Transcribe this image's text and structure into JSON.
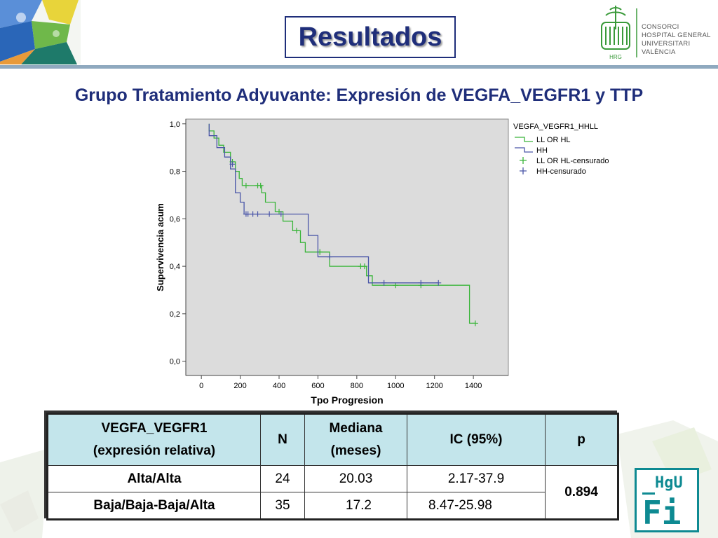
{
  "header": {
    "title": "Resultados",
    "logo_lines": [
      "CONSORCI",
      "HOSPITAL GENERAL",
      "UNIVERSITARI",
      "VALÈNCIA"
    ],
    "logo_mark_text": "HRG"
  },
  "subtitle": "Grupo Tratamiento Adyuvante: Expresión de VEGFA_VEGFR1 y TTP",
  "chart_data": {
    "type": "line",
    "subtype": "kaplan-meier step survival curve",
    "title": "",
    "xlabel": "Tpo Progresion",
    "ylabel": "Supervivencia acum",
    "xlim": [
      -80,
      1580
    ],
    "ylim": [
      -0.06,
      1.02
    ],
    "x_ticks": [
      0,
      200,
      400,
      600,
      800,
      1000,
      1200,
      1400
    ],
    "y_ticks": [
      0.0,
      0.2,
      0.4,
      0.6,
      0.8,
      1.0
    ],
    "y_tick_labels": [
      "0,0",
      "0,2",
      "0,4",
      "0,6",
      "0,8",
      "1,0"
    ],
    "grid": false,
    "legend_title": "VEGFA_VEGFR1_HHLL",
    "legend_placement": "right",
    "legend_entries": [
      "LL OR HL",
      "HH",
      "LL OR HL-censurado",
      "HH-censurado"
    ],
    "series": [
      {
        "name": "LL OR HL",
        "color": "#3ab53a",
        "steps": [
          [
            40,
            1.0
          ],
          [
            40,
            0.97
          ],
          [
            65,
            0.97
          ],
          [
            65,
            0.94
          ],
          [
            90,
            0.94
          ],
          [
            90,
            0.91
          ],
          [
            115,
            0.91
          ],
          [
            115,
            0.88
          ],
          [
            150,
            0.88
          ],
          [
            150,
            0.84
          ],
          [
            175,
            0.84
          ],
          [
            175,
            0.8
          ],
          [
            195,
            0.8
          ],
          [
            195,
            0.77
          ],
          [
            210,
            0.77
          ],
          [
            210,
            0.74
          ],
          [
            310,
            0.74
          ],
          [
            310,
            0.71
          ],
          [
            330,
            0.71
          ],
          [
            330,
            0.67
          ],
          [
            380,
            0.67
          ],
          [
            380,
            0.63
          ],
          [
            420,
            0.63
          ],
          [
            420,
            0.59
          ],
          [
            470,
            0.59
          ],
          [
            470,
            0.55
          ],
          [
            510,
            0.55
          ],
          [
            510,
            0.5
          ],
          [
            535,
            0.5
          ],
          [
            535,
            0.46
          ],
          [
            660,
            0.46
          ],
          [
            660,
            0.4
          ],
          [
            850,
            0.4
          ],
          [
            850,
            0.36
          ],
          [
            880,
            0.36
          ],
          [
            880,
            0.32
          ],
          [
            1380,
            0.32
          ],
          [
            1380,
            0.16
          ],
          [
            1410,
            0.16
          ]
        ],
        "censored": [
          [
            160,
            0.84
          ],
          [
            230,
            0.74
          ],
          [
            290,
            0.74
          ],
          [
            305,
            0.74
          ],
          [
            400,
            0.63
          ],
          [
            490,
            0.55
          ],
          [
            610,
            0.46
          ],
          [
            820,
            0.4
          ],
          [
            840,
            0.4
          ],
          [
            1000,
            0.32
          ],
          [
            1130,
            0.32
          ],
          [
            1410,
            0.16
          ]
        ]
      },
      {
        "name": "HH",
        "color": "#4a56a8",
        "steps": [
          [
            40,
            1.0
          ],
          [
            40,
            0.95
          ],
          [
            80,
            0.95
          ],
          [
            80,
            0.9
          ],
          [
            120,
            0.9
          ],
          [
            120,
            0.86
          ],
          [
            150,
            0.86
          ],
          [
            150,
            0.81
          ],
          [
            175,
            0.81
          ],
          [
            175,
            0.71
          ],
          [
            200,
            0.71
          ],
          [
            200,
            0.67
          ],
          [
            220,
            0.67
          ],
          [
            220,
            0.62
          ],
          [
            550,
            0.62
          ],
          [
            550,
            0.53
          ],
          [
            600,
            0.53
          ],
          [
            600,
            0.44
          ],
          [
            860,
            0.44
          ],
          [
            860,
            0.33
          ],
          [
            1220,
            0.33
          ]
        ],
        "censored": [
          [
            160,
            0.83
          ],
          [
            230,
            0.62
          ],
          [
            240,
            0.62
          ],
          [
            265,
            0.62
          ],
          [
            290,
            0.62
          ],
          [
            350,
            0.62
          ],
          [
            410,
            0.62
          ],
          [
            660,
            0.44
          ],
          [
            940,
            0.33
          ],
          [
            1130,
            0.33
          ],
          [
            1220,
            0.33
          ]
        ]
      }
    ]
  },
  "table": {
    "headers": [
      {
        "line1": "VEGFA_VEGFR1",
        "line2": "(expresión relativa)"
      },
      {
        "line1": "N"
      },
      {
        "line1": "Mediana",
        "line2": "(meses)"
      },
      {
        "line1": "IC (95%)"
      },
      {
        "line1": "p"
      }
    ],
    "rows": [
      {
        "group": "Alta/Alta",
        "n": "24",
        "mediana": "20.03",
        "ic": "2.17-37.9"
      },
      {
        "group": "Baja/Baja-Baja/Alta",
        "n": "35",
        "mediana": "17.2",
        "ic": "8.47-25.98"
      }
    ],
    "p_value": "0.894"
  },
  "badge": {
    "top": "HgU",
    "bottom": "Fi"
  },
  "colors": {
    "title": "#1f2e7a",
    "header_rule": "#8fa9bf",
    "table_header": "#c3e5eb",
    "plot_bg": "#dcdcdc",
    "badge": "#0e8a92"
  }
}
